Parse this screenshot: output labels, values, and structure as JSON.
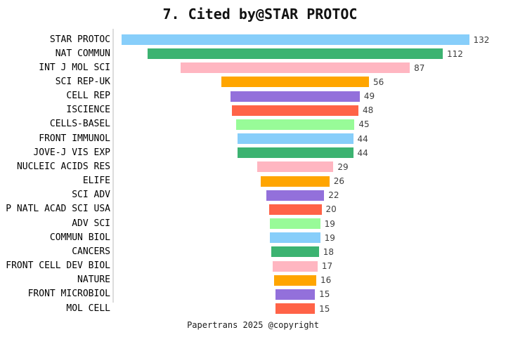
{
  "chart_data": {
    "type": "bar",
    "orientation": "horizontal_centered_funnel",
    "title": "7. Cited by@STAR PROTOC",
    "legend": "none",
    "grid": false,
    "axis_line_color": "#dcdcdc",
    "background": "#ffffff",
    "value_label_color": "#3d3d3d",
    "xlim": [
      0,
      132
    ],
    "categories": [
      "STAR PROTOC",
      "NAT COMMUN",
      "INT J MOL SCI",
      "SCI REP-UK",
      "CELL REP",
      "ISCIENCE",
      "CELLS-BASEL",
      "FRONT IMMUNOL",
      "JOVE-J VIS EXP",
      "NUCLEIC ACIDS RES",
      "ELIFE",
      "SCI ADV",
      "P NATL ACAD SCI USA",
      "ADV SCI",
      "COMMUN BIOL",
      "CANCERS",
      "FRONT CELL DEV BIOL",
      "NATURE",
      "FRONT MICROBIOL",
      "MOL CELL"
    ],
    "values": [
      132,
      112,
      87,
      56,
      49,
      48,
      45,
      44,
      44,
      29,
      26,
      22,
      20,
      19,
      19,
      18,
      17,
      16,
      15,
      15
    ],
    "palette": [
      "#87CEFA",
      "#3CB371",
      "#FFB6C1",
      "#FFA500",
      "#9370DB",
      "#FF6347",
      "#98FB98"
    ]
  },
  "footer": {
    "copyright": "Papertrans 2025 @copyright"
  }
}
